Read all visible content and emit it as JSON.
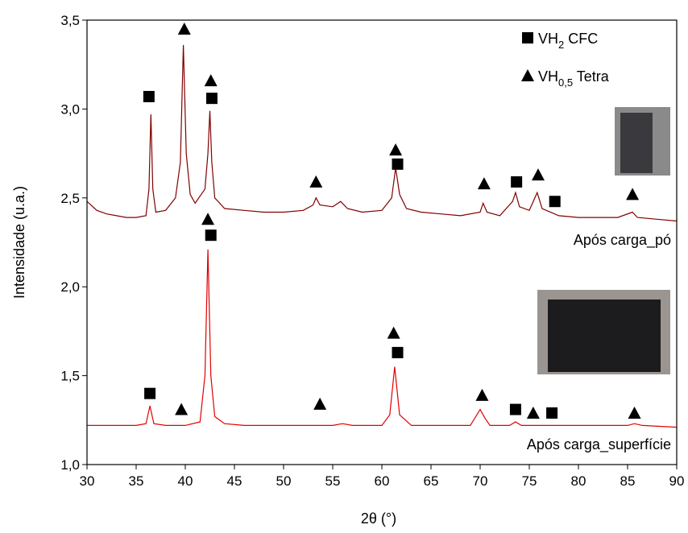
{
  "chart_data": {
    "type": "line",
    "xlabel": "2θ (°)",
    "ylabel": "Intensidade (u.a.)",
    "xlim": [
      30,
      90
    ],
    "ylim": [
      1.0,
      3.5
    ],
    "xticks": [
      30,
      35,
      40,
      45,
      50,
      55,
      60,
      65,
      70,
      75,
      80,
      85,
      90
    ],
    "yticks": [
      {
        "value": 1.0,
        "label": "1,0"
      },
      {
        "value": 1.5,
        "label": "1,5"
      },
      {
        "value": 2.0,
        "label": "2,0"
      },
      {
        "value": 2.5,
        "label": "2,5"
      },
      {
        "value": 3.0,
        "label": "3,0"
      },
      {
        "value": 3.5,
        "label": "3,5"
      }
    ],
    "series": [
      {
        "name": "Após carga_pó",
        "color": "#800000",
        "x": [
          30,
          31,
          32,
          33,
          34,
          35,
          36,
          36.3,
          36.5,
          36.7,
          37,
          38,
          39,
          39.5,
          39.8,
          40.1,
          40.5,
          41,
          42,
          42.3,
          42.5,
          42.7,
          43,
          44,
          46,
          48,
          50,
          52,
          53,
          53.3,
          53.7,
          55,
          55.8,
          56.5,
          58,
          60,
          61,
          61.4,
          61.8,
          62.5,
          64,
          66,
          68,
          70,
          70.3,
          70.7,
          72,
          73.3,
          73.6,
          74,
          75,
          75.8,
          76.3,
          78,
          80,
          82,
          84,
          85.5,
          86,
          88,
          90
        ],
        "values": [
          2.48,
          2.43,
          2.41,
          2.4,
          2.39,
          2.39,
          2.4,
          2.55,
          2.97,
          2.55,
          2.42,
          2.43,
          2.5,
          2.7,
          3.36,
          2.75,
          2.52,
          2.47,
          2.55,
          2.75,
          2.99,
          2.7,
          2.5,
          2.44,
          2.43,
          2.42,
          2.42,
          2.43,
          2.46,
          2.5,
          2.46,
          2.45,
          2.48,
          2.44,
          2.42,
          2.43,
          2.5,
          2.67,
          2.52,
          2.44,
          2.42,
          2.41,
          2.4,
          2.42,
          2.47,
          2.42,
          2.4,
          2.48,
          2.53,
          2.45,
          2.43,
          2.53,
          2.44,
          2.4,
          2.39,
          2.39,
          2.39,
          2.42,
          2.39,
          2.38,
          2.37
        ]
      },
      {
        "name": "Após carga_superfície",
        "color": "#e00000",
        "x": [
          30,
          35,
          36,
          36.4,
          36.8,
          38,
          40,
          41.5,
          42,
          42.3,
          42.6,
          43,
          44,
          46,
          50,
          55,
          56,
          57,
          60,
          60.8,
          61.3,
          61.8,
          63,
          66,
          69,
          70,
          70.5,
          71,
          73,
          73.6,
          74.2,
          78,
          85,
          85.7,
          86.5,
          90
        ],
        "values": [
          1.22,
          1.22,
          1.23,
          1.33,
          1.23,
          1.22,
          1.22,
          1.24,
          1.5,
          2.21,
          1.5,
          1.27,
          1.23,
          1.22,
          1.22,
          1.22,
          1.23,
          1.22,
          1.22,
          1.28,
          1.55,
          1.28,
          1.22,
          1.22,
          1.22,
          1.31,
          1.26,
          1.22,
          1.22,
          1.24,
          1.22,
          1.22,
          1.22,
          1.23,
          1.22,
          1.21
        ]
      }
    ],
    "legend": [
      {
        "symbol": "square",
        "base": "VH",
        "sub": "2",
        "rest": " CFC"
      },
      {
        "symbol": "triangle",
        "base": "VH",
        "sub": "0,5",
        "rest": " Tetra"
      }
    ],
    "markers": [
      {
        "symbol": "square",
        "x": 36.3,
        "y": 3.07
      },
      {
        "symbol": "triangle",
        "x": 39.9,
        "y": 3.45
      },
      {
        "symbol": "triangle",
        "x": 42.6,
        "y": 3.16
      },
      {
        "symbol": "square",
        "x": 42.7,
        "y": 3.06
      },
      {
        "symbol": "triangle",
        "x": 53.3,
        "y": 2.59
      },
      {
        "symbol": "triangle",
        "x": 61.4,
        "y": 2.77
      },
      {
        "symbol": "square",
        "x": 61.6,
        "y": 2.69
      },
      {
        "symbol": "triangle",
        "x": 70.4,
        "y": 2.58
      },
      {
        "symbol": "square",
        "x": 73.7,
        "y": 2.59
      },
      {
        "symbol": "triangle",
        "x": 75.9,
        "y": 2.63
      },
      {
        "symbol": "square",
        "x": 77.6,
        "y": 2.48
      },
      {
        "symbol": "triangle",
        "x": 85.5,
        "y": 2.52
      },
      {
        "symbol": "triangle",
        "x": 42.3,
        "y": 2.38
      },
      {
        "symbol": "square",
        "x": 42.6,
        "y": 2.29
      },
      {
        "symbol": "square",
        "x": 36.4,
        "y": 1.4
      },
      {
        "symbol": "triangle",
        "x": 39.6,
        "y": 1.31
      },
      {
        "symbol": "triangle",
        "x": 53.7,
        "y": 1.34
      },
      {
        "symbol": "triangle",
        "x": 61.2,
        "y": 1.74
      },
      {
        "symbol": "square",
        "x": 61.6,
        "y": 1.63
      },
      {
        "symbol": "triangle",
        "x": 70.2,
        "y": 1.39
      },
      {
        "symbol": "square",
        "x": 73.6,
        "y": 1.31
      },
      {
        "symbol": "triangle",
        "x": 75.4,
        "y": 1.29
      },
      {
        "symbol": "square",
        "x": 77.3,
        "y": 1.29
      },
      {
        "symbol": "triangle",
        "x": 85.7,
        "y": 1.29
      }
    ]
  }
}
